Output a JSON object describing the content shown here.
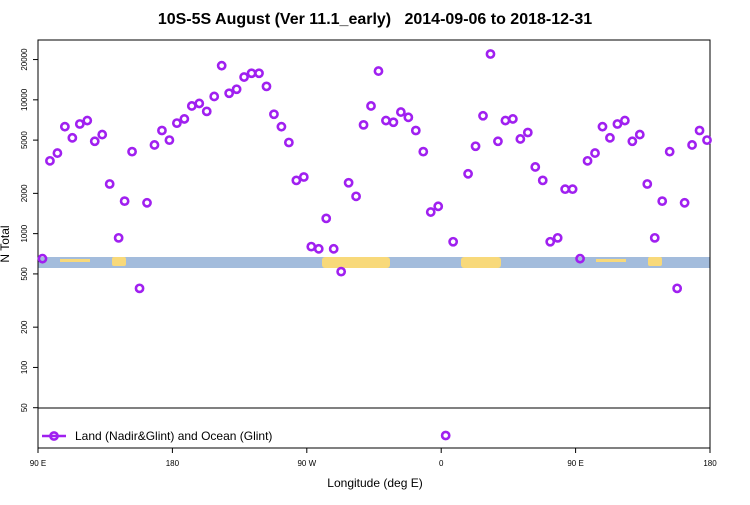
{
  "chart_data": {
    "type": "scatter",
    "title": "10S-5S August (Ver 11.1_early)   2014-09-06 to 2018-12-31",
    "xlabel": "Longitude (deg E)",
    "ylabel": "N Total",
    "log_y": true,
    "legend": "bottom-left",
    "xlim": [
      90,
      540
    ],
    "xticks": [
      {
        "value": 90,
        "label": "90 E"
      },
      180,
      {
        "value": 270,
        "label": "90 W"
      },
      {
        "value": 360,
        "label": "0"
      },
      {
        "value": 450,
        "label": "90 E"
      },
      {
        "value": 540,
        "label": "180"
      }
    ],
    "ylim": [
      25,
      28000
    ],
    "yticks": [
      50,
      100,
      200,
      500,
      1000,
      2000,
      5000,
      10000,
      20000
    ],
    "series": [
      {
        "name": "Land (Nadir&Glint) and Ocean (Glint)",
        "color": "#a020f0",
        "x": [
          93,
          98,
          103,
          108,
          113,
          118,
          123,
          128,
          133,
          138,
          144,
          148,
          153,
          158,
          163,
          168,
          173,
          178,
          183,
          188,
          193,
          198,
          203,
          208,
          213,
          218,
          223,
          228,
          233,
          238,
          243,
          248,
          253,
          258,
          263,
          268,
          273,
          278,
          283,
          288,
          293,
          298,
          303,
          308,
          313,
          318,
          323,
          328,
          333,
          338,
          343,
          348,
          353,
          358,
          363,
          368,
          378,
          383,
          388,
          393,
          398,
          403,
          408,
          413,
          418,
          423,
          428,
          433,
          438,
          443,
          448,
          453,
          458,
          463,
          468,
          473,
          478,
          483,
          488,
          493,
          498,
          503,
          508,
          513,
          518,
          523,
          528,
          533,
          538
        ],
        "values": [
          650,
          3500,
          4000,
          6300,
          5200,
          6600,
          7000,
          4900,
          5500,
          2350,
          930,
          1750,
          4100,
          390,
          1700,
          4600,
          5900,
          5000,
          6700,
          7200,
          9000,
          9400,
          8200,
          10600,
          18000,
          11200,
          12000,
          14800,
          15800,
          15800,
          12600,
          7800,
          6300,
          4800,
          2500,
          2650,
          800,
          770,
          1300,
          770,
          520,
          2400,
          1900,
          6500,
          9000,
          16400,
          7000,
          6800,
          8100,
          7400,
          5900,
          4100,
          1450,
          1600,
          31,
          870,
          2800,
          4500,
          7600,
          22000,
          4900,
          7000,
          7200,
          5100,
          5700,
          3150,
          2500,
          870,
          930,
          2150,
          2150,
          650,
          3500,
          4000,
          6300,
          5200,
          6600,
          7000,
          4900,
          5500,
          2350,
          930,
          1750,
          4100,
          390,
          1700,
          4600,
          5900,
          5000
        ]
      }
    ]
  }
}
